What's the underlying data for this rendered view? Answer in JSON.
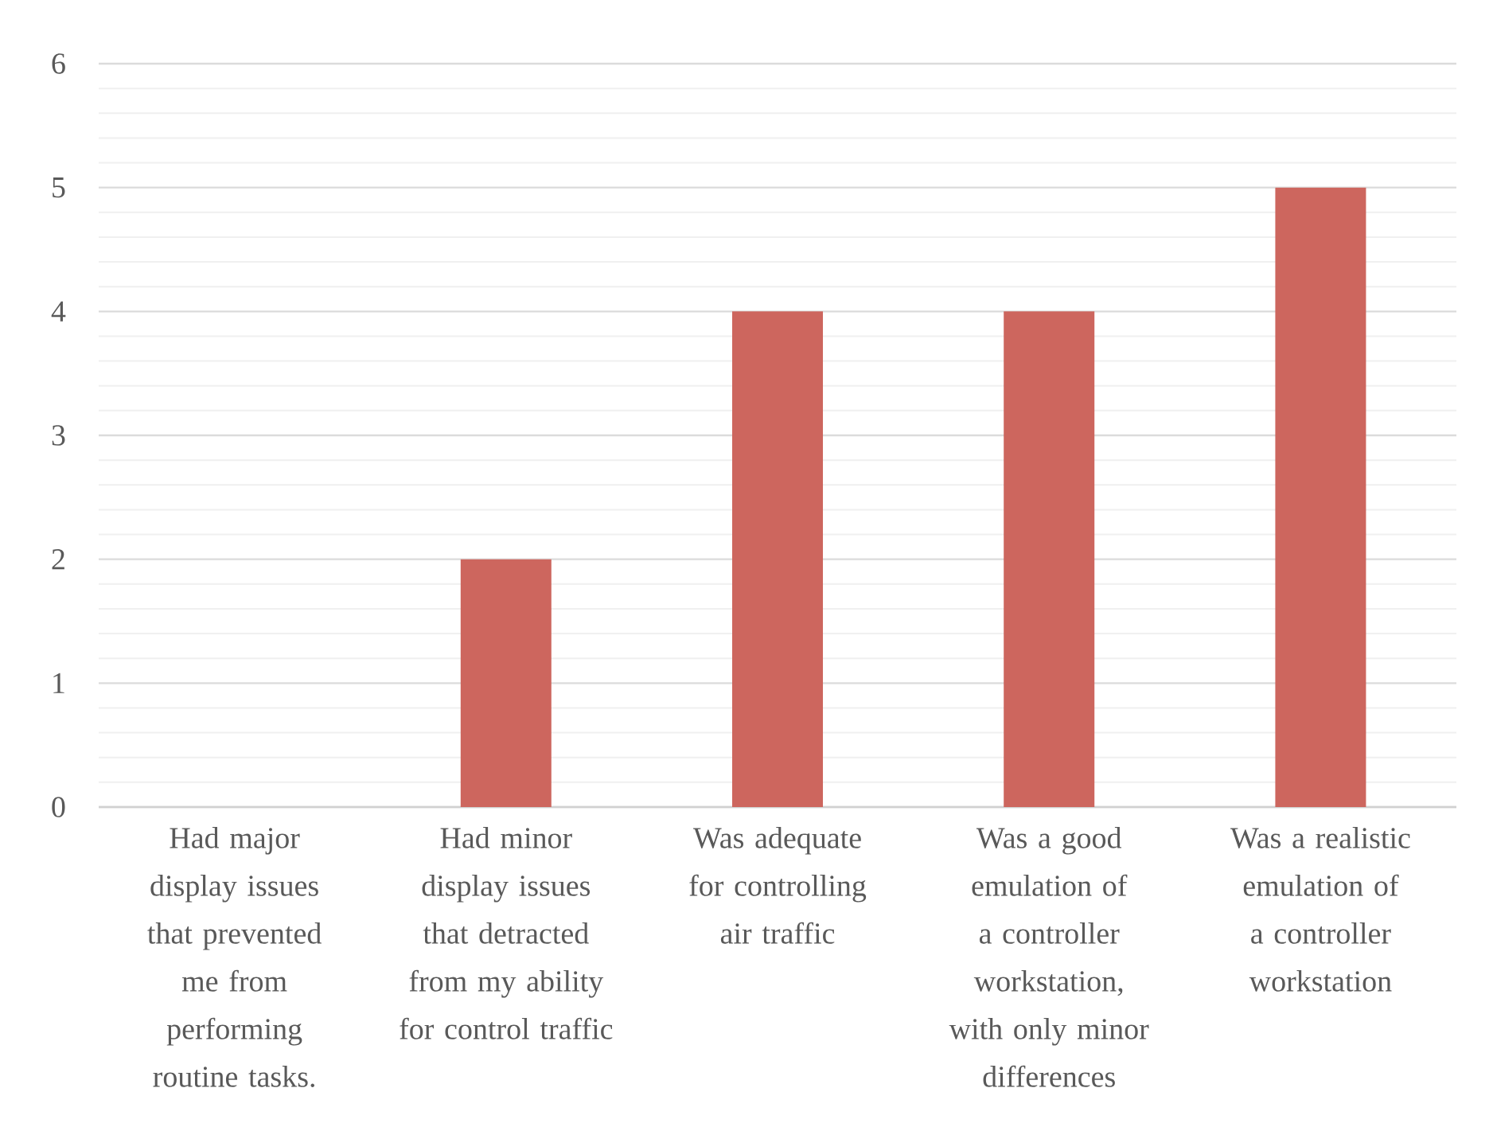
{
  "chart_data": {
    "type": "bar",
    "categories": [
      "Had major display issues that prevented me from performing routine tasks.",
      "Had minor display issues that detracted from my ability for control traffic",
      "Was adequate for controlling air traffic",
      "Was a good emulation of a controller workstation, with only minor differences",
      "Was a realistic emulation of a controller workstation"
    ],
    "values": [
      0,
      2,
      4,
      4,
      5
    ],
    "color": "#cd665e",
    "ylim": [
      0,
      6
    ],
    "yticks": [
      0,
      1,
      2,
      3,
      4,
      5,
      6
    ],
    "grid": "y"
  }
}
